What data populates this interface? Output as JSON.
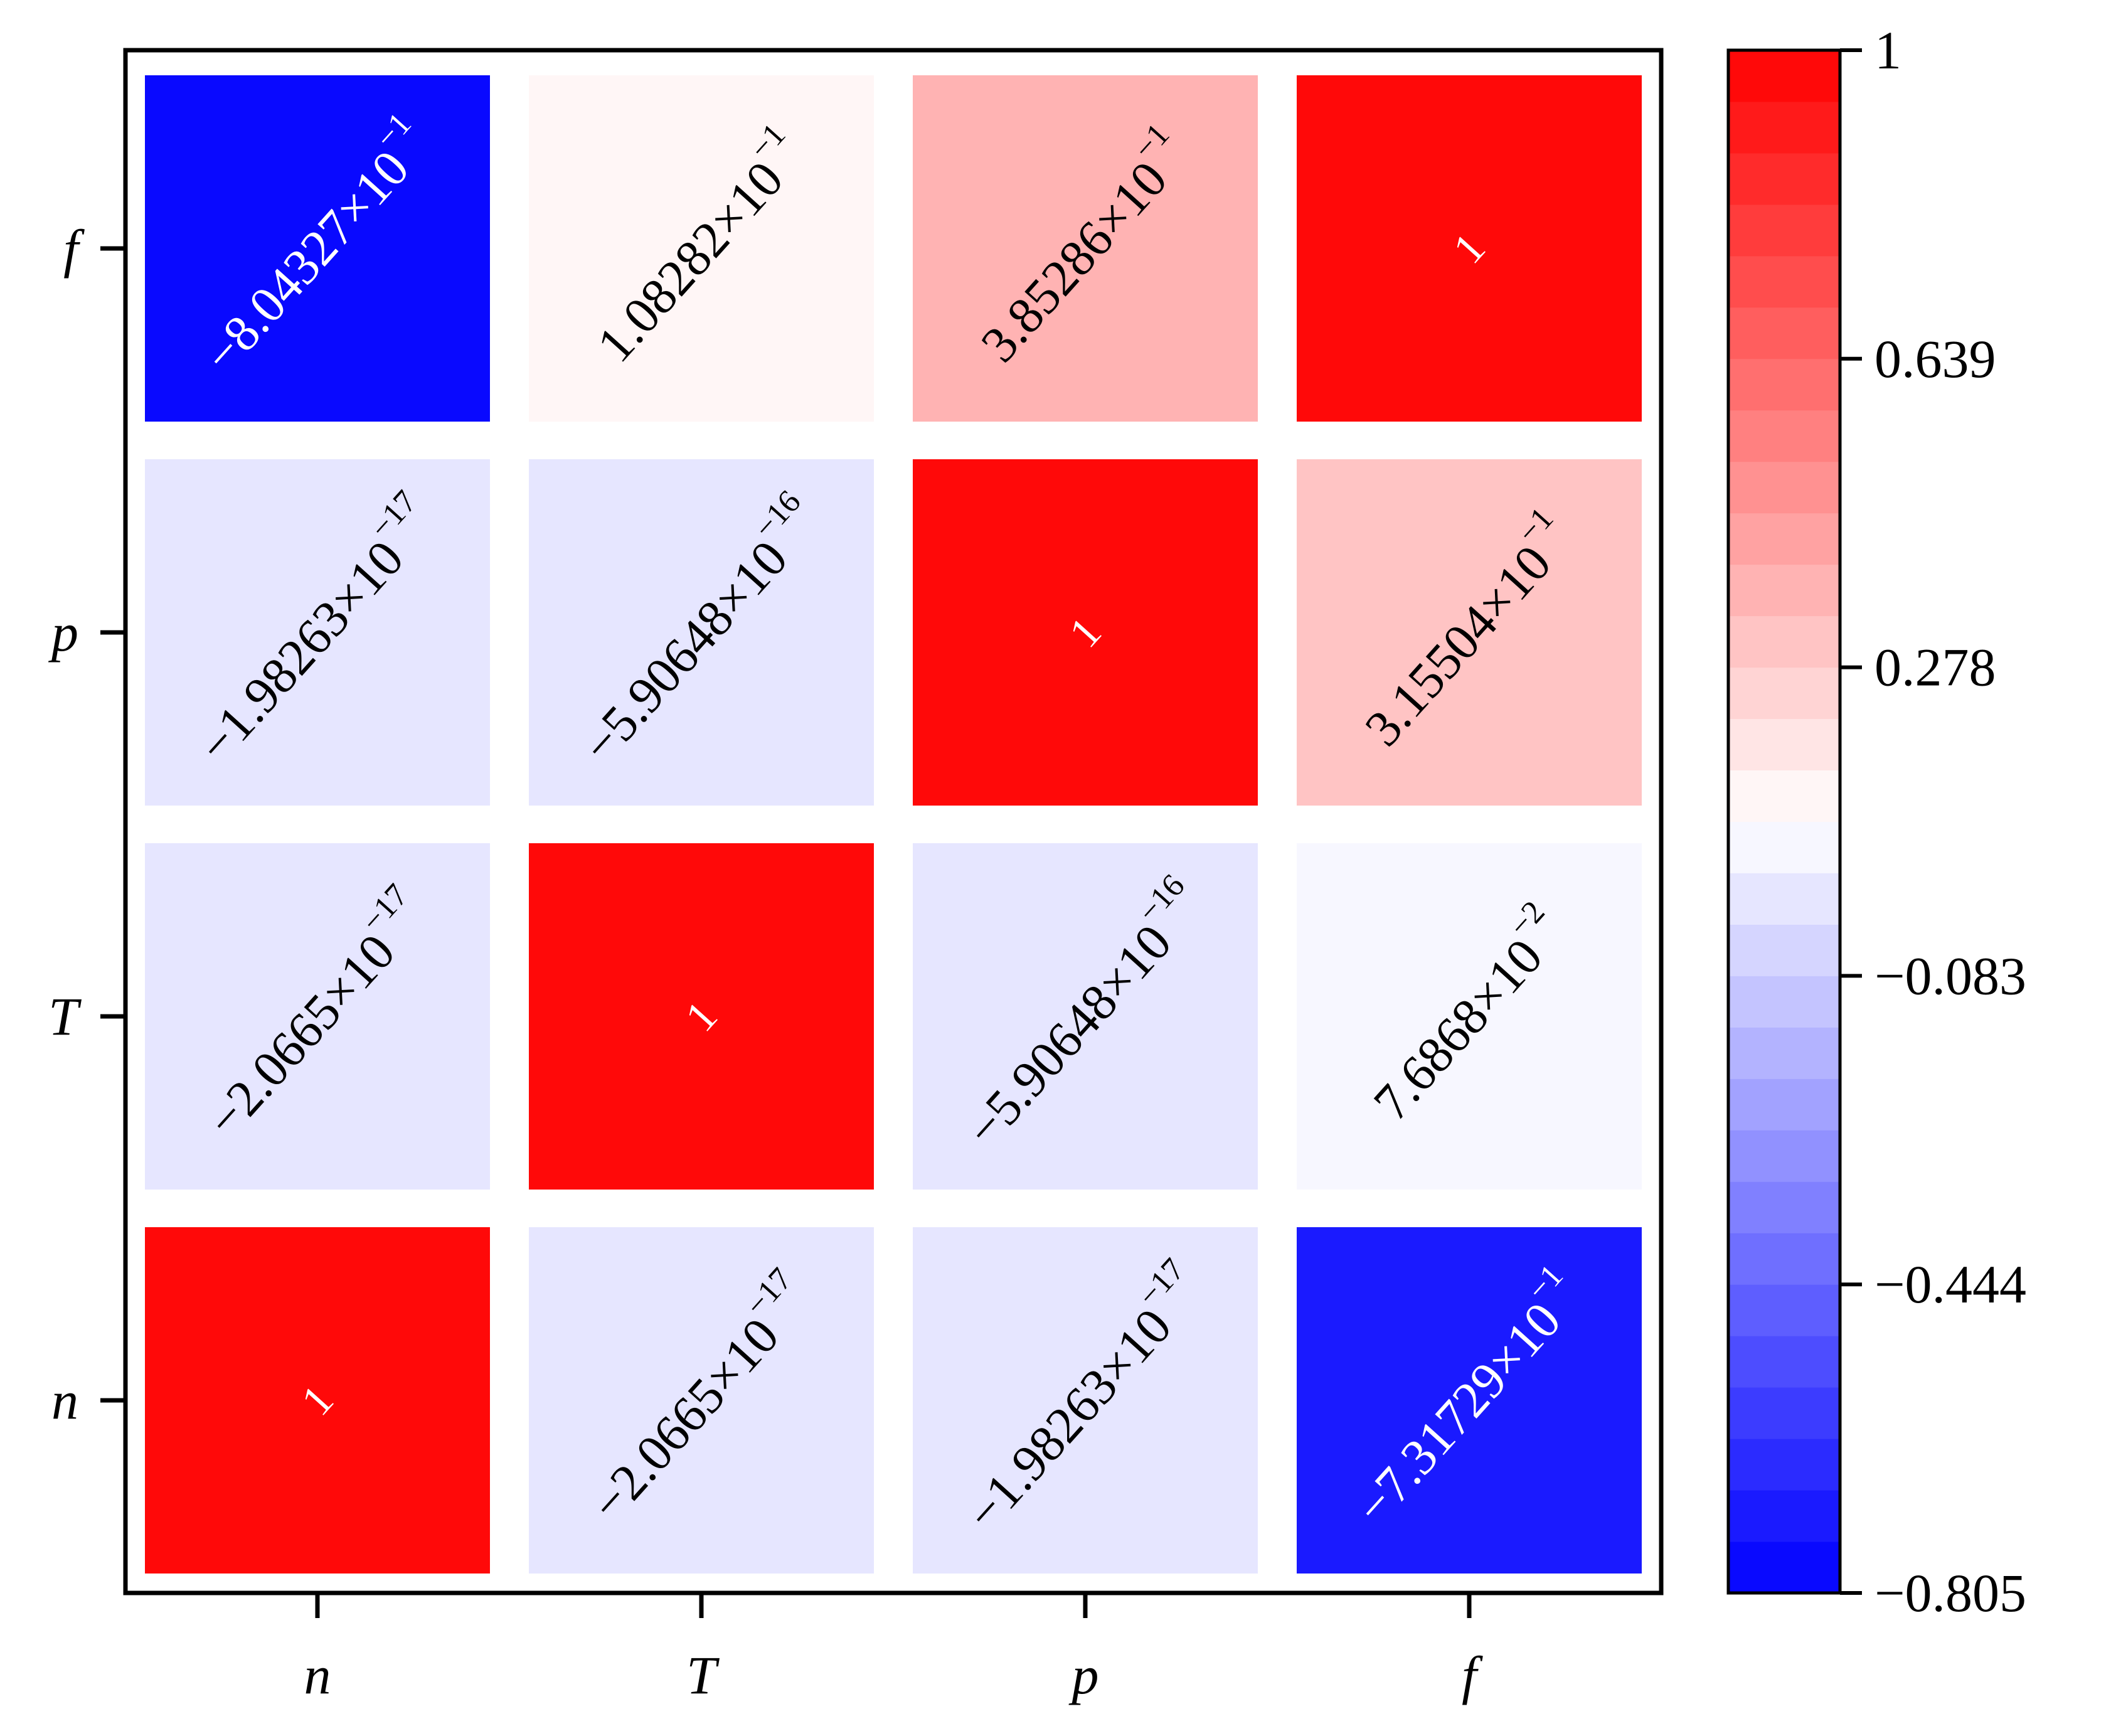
{
  "chart_data": {
    "type": "heatmap",
    "title": "",
    "xlabel": "",
    "ylabel": "",
    "x_categories": [
      "n",
      "T",
      "p",
      "f"
    ],
    "y_categories": [
      "n",
      "T",
      "p",
      "f"
    ],
    "matrix": [
      [
        1,
        -2.0665e-17,
        -1.98263e-17,
        -0.731729
      ],
      [
        -2.0665e-17,
        1,
        -5.90648e-16,
        0.076868
      ],
      [
        -1.98263e-17,
        -5.90648e-16,
        1,
        0.315504
      ],
      [
        -0.804327,
        0.108282,
        0.385286,
        1
      ]
    ],
    "cell_labels": [
      [
        {
          "mantissa": "1",
          "exponent": ""
        },
        {
          "mantissa": "−2.0665×10",
          "exponent": "−17"
        },
        {
          "mantissa": "−1.98263×10",
          "exponent": "−17"
        },
        {
          "mantissa": "−7.31729×10",
          "exponent": "−1"
        }
      ],
      [
        {
          "mantissa": "−2.0665×10",
          "exponent": "−17"
        },
        {
          "mantissa": "1",
          "exponent": ""
        },
        {
          "mantissa": "−5.90648×10",
          "exponent": "−16"
        },
        {
          "mantissa": "7.6868×10",
          "exponent": "−2"
        }
      ],
      [
        {
          "mantissa": "−1.98263×10",
          "exponent": "−17"
        },
        {
          "mantissa": "−5.90648×10",
          "exponent": "−16"
        },
        {
          "mantissa": "1",
          "exponent": ""
        },
        {
          "mantissa": "3.15504×10",
          "exponent": "−1"
        }
      ],
      [
        {
          "mantissa": "−8.04327×10",
          "exponent": "−1"
        },
        {
          "mantissa": "1.08282×10",
          "exponent": "−1"
        },
        {
          "mantissa": "3.85286×10",
          "exponent": "−1"
        },
        {
          "mantissa": "1",
          "exponent": ""
        }
      ]
    ],
    "colorbar": {
      "min": -0.805,
      "max": 1,
      "ticks": [
        -0.805,
        -0.444,
        -0.083,
        0.278,
        0.639,
        1
      ],
      "tick_labels": [
        "−0.805",
        "−0.444",
        "−0.083",
        "0.278",
        "0.639",
        "1"
      ],
      "levels": 30,
      "colors": {
        "low": "#0000ff",
        "mid": "#ffffff",
        "high": "#ff0000"
      }
    },
    "grid": false,
    "legend": "colorbar-right"
  }
}
